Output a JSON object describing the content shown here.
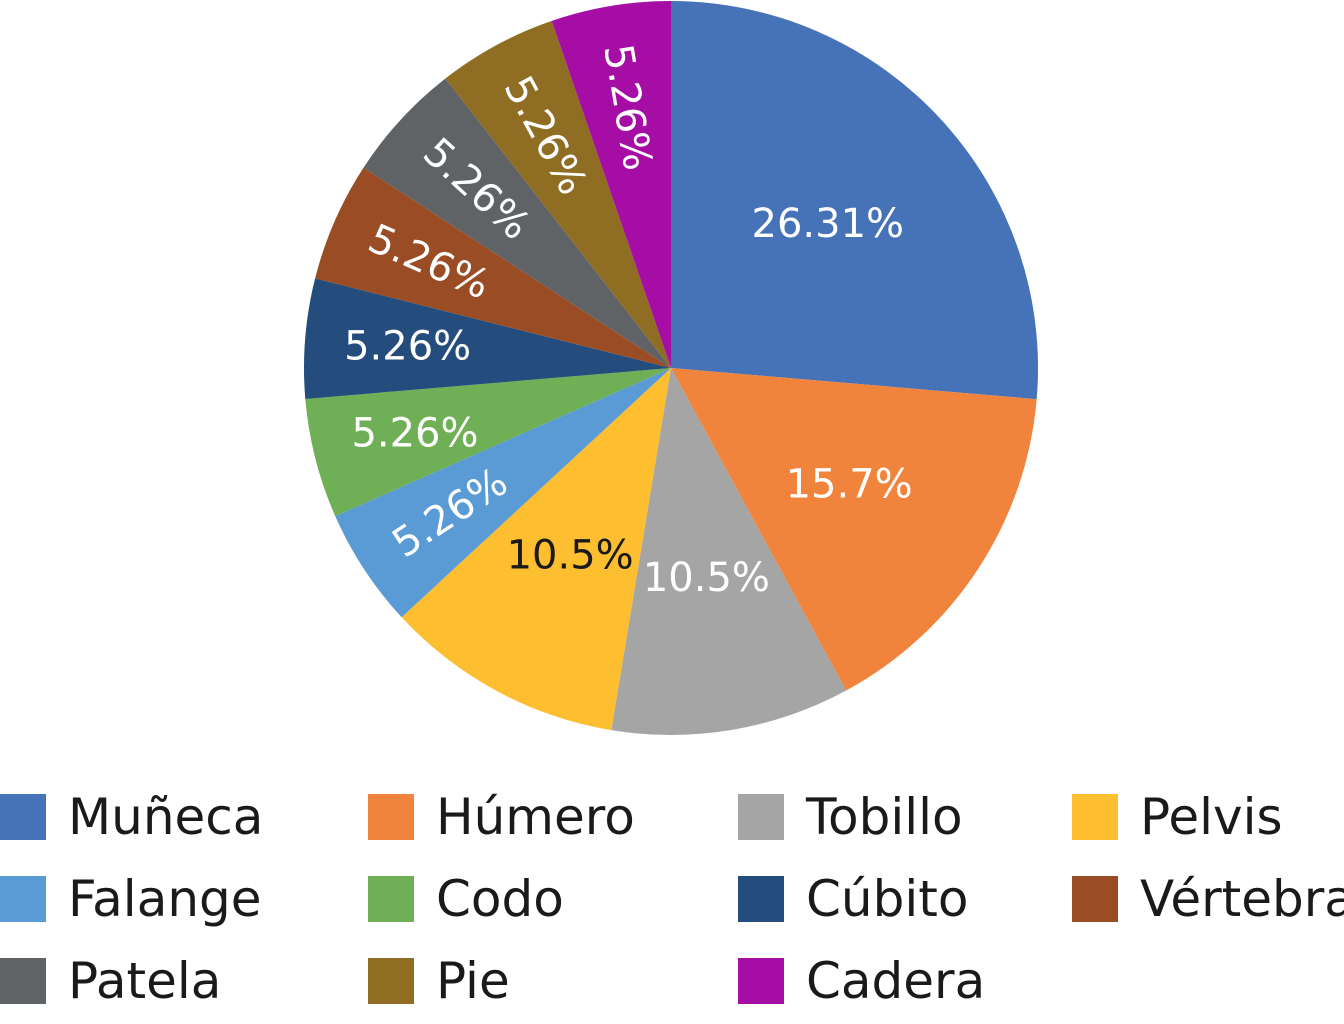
{
  "chart_data": {
    "type": "pie",
    "title": "",
    "slices": [
      {
        "label": "Muñeca",
        "value": 26.31,
        "display": "26.31%",
        "color": "#4672B8",
        "text_color": "#ffffff"
      },
      {
        "label": "Húmero",
        "value": 15.7,
        "display": "15.7%",
        "color": "#F0843D",
        "text_color": "#ffffff"
      },
      {
        "label": "Tobillo",
        "value": 10.5,
        "display": "10.5%",
        "color": "#A5A5A5",
        "text_color": "#ffffff"
      },
      {
        "label": "Pelvis",
        "value": 10.5,
        "display": "10.5%",
        "color": "#FDBE2F",
        "text_color": "#1a1a1a"
      },
      {
        "label": "Falange",
        "value": 5.26,
        "display": "5.26%",
        "color": "#5B9BD5",
        "text_color": "#ffffff"
      },
      {
        "label": "Codo",
        "value": 5.26,
        "display": "5.26%",
        "color": "#6FAF56",
        "text_color": "#ffffff"
      },
      {
        "label": "Cúbito",
        "value": 5.26,
        "display": "5.26%",
        "color": "#244C7C",
        "text_color": "#ffffff"
      },
      {
        "label": "Vértebra",
        "value": 5.26,
        "display": "5.26%",
        "color": "#9A4D25",
        "text_color": "#ffffff"
      },
      {
        "label": "Patela",
        "value": 5.26,
        "display": "5.26%",
        "color": "#5F6366",
        "text_color": "#ffffff"
      },
      {
        "label": "Pie",
        "value": 5.26,
        "display": "5.26%",
        "color": "#8F6E24",
        "text_color": "#ffffff"
      },
      {
        "label": "Cadera",
        "value": 5.26,
        "display": "5.26%",
        "color": "#A50DA5",
        "text_color": "#ffffff"
      }
    ],
    "legend": {
      "placement": "bottom",
      "items": [
        "Muñeca",
        "Húmero",
        "Tobillo",
        "Pelvis",
        "Falange",
        "Codo",
        "Cúbito",
        "Vértebra",
        "Patela",
        "Pie",
        "Cadera"
      ]
    }
  }
}
